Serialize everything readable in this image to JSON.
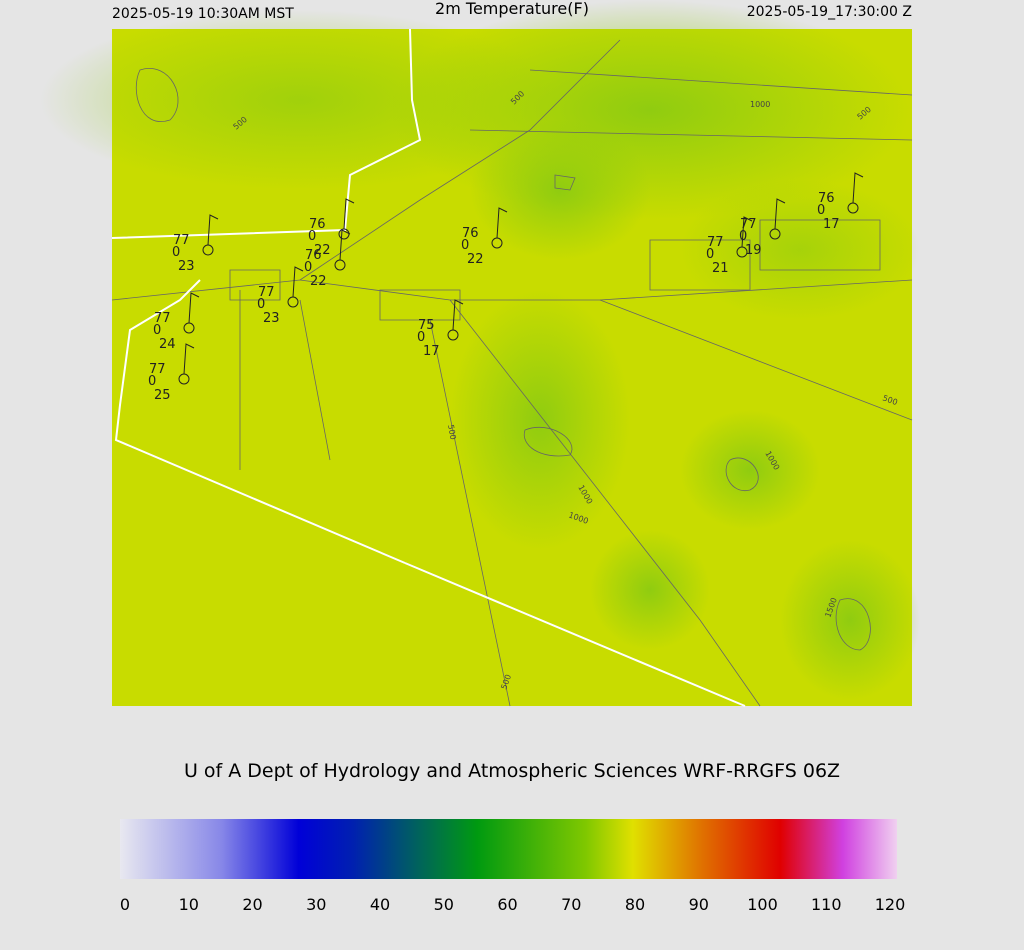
{
  "header": {
    "left": "2025-05-19 10:30AM MST",
    "title": "2m Temperature(F)",
    "right": "2025-05-19_17:30:00 Z"
  },
  "stations": [
    {
      "temp": 77,
      "wind": 0,
      "dew": 23
    },
    {
      "temp": 76,
      "wind": 0,
      "dew": 22
    },
    {
      "temp": 76,
      "wind": 0,
      "dew": 22
    },
    {
      "temp": 77,
      "wind": 0,
      "dew": 23
    },
    {
      "temp": 77,
      "wind": 0,
      "dew": 24
    },
    {
      "temp": 77,
      "wind": 0,
      "dew": 25
    },
    {
      "temp": 75,
      "wind": 0,
      "dew": 17
    },
    {
      "temp": 76,
      "wind": 0,
      "dew": 22
    },
    {
      "temp": 77,
      "wind": 0,
      "dew": 21
    },
    {
      "temp": 77,
      "wind": 0,
      "dew": 19
    },
    {
      "temp": 76,
      "wind": 0,
      "dew": 17
    }
  ],
  "contour_labels": [
    500,
    500,
    500,
    1000,
    500,
    1000,
    1000,
    1000,
    500,
    1500,
    500
  ],
  "credit": "U of A Dept of Hydrology and Atmospheric Sciences WRF-RRGFS 06Z",
  "colorbar": {
    "ticks": [
      0,
      10,
      20,
      30,
      40,
      50,
      60,
      70,
      80,
      90,
      100,
      110,
      120
    ]
  }
}
